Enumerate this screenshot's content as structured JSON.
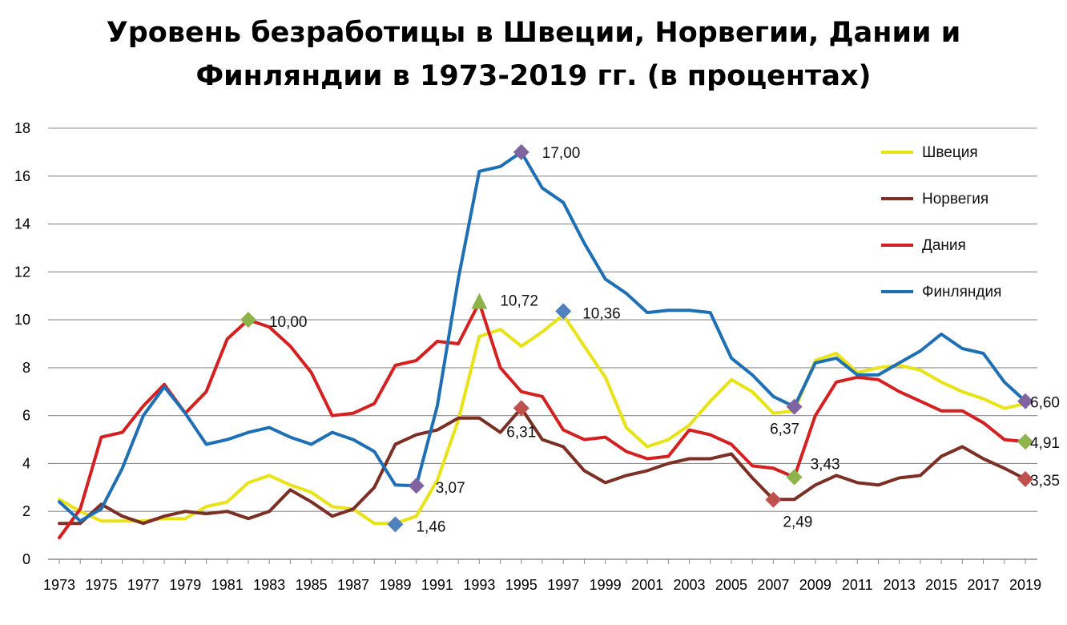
{
  "chart_data": {
    "type": "line",
    "title_line1": "Уровень безработицы в Швеции, Норвегии, Дании и",
    "title_line2": "Финляндии в 1973-2019 гг. (в процентах)",
    "xlabel": "",
    "ylabel": "",
    "ylim": [
      0,
      18
    ],
    "yticks": [
      0,
      2,
      4,
      6,
      8,
      10,
      12,
      14,
      16,
      18
    ],
    "x": [
      1973,
      1974,
      1975,
      1976,
      1977,
      1978,
      1979,
      1980,
      1981,
      1982,
      1983,
      1984,
      1985,
      1986,
      1987,
      1988,
      1989,
      1990,
      1991,
      1992,
      1993,
      1994,
      1995,
      1996,
      1997,
      1998,
      1999,
      2000,
      2001,
      2002,
      2003,
      2004,
      2005,
      2006,
      2007,
      2008,
      2009,
      2010,
      2011,
      2012,
      2013,
      2014,
      2015,
      2016,
      2017,
      2018,
      2019
    ],
    "xtick_labels": [
      "1973",
      "1975",
      "1977",
      "1979",
      "1981",
      "1983",
      "1985",
      "1987",
      "1989",
      "1991",
      "1993",
      "1995",
      "1997",
      "1999",
      "2001",
      "2003",
      "2005",
      "2007",
      "2009",
      "2011",
      "2013",
      "2015",
      "2017",
      "2019"
    ],
    "grid": true,
    "legend_position": "top-right",
    "series": [
      {
        "name": "Швеция",
        "color": "#e8e317",
        "values": [
          2.5,
          2.0,
          1.6,
          1.6,
          1.6,
          1.7,
          1.7,
          2.2,
          2.4,
          3.2,
          3.5,
          3.1,
          2.8,
          2.2,
          2.1,
          1.5,
          1.5,
          1.8,
          3.3,
          5.8,
          9.3,
          9.6,
          8.9,
          9.5,
          10.2,
          8.9,
          7.6,
          5.5,
          4.7,
          5.0,
          5.6,
          6.6,
          7.5,
          7.0,
          6.1,
          6.2,
          8.3,
          8.6,
          7.8,
          8.0,
          8.1,
          7.9,
          7.4,
          7.0,
          6.7,
          6.3,
          6.5
        ]
      },
      {
        "name": "Норвегия",
        "color": "#7b2f25",
        "values": [
          1.5,
          1.5,
          2.3,
          1.8,
          1.5,
          1.8,
          2.0,
          1.9,
          2.0,
          1.7,
          2.0,
          2.9,
          2.4,
          1.8,
          2.1,
          3.0,
          4.8,
          5.2,
          5.4,
          5.9,
          5.9,
          5.3,
          6.31,
          5.0,
          4.7,
          3.7,
          3.2,
          3.5,
          3.7,
          4.0,
          4.2,
          4.2,
          4.4,
          3.4,
          2.5,
          2.5,
          3.1,
          3.5,
          3.2,
          3.1,
          3.4,
          3.5,
          4.3,
          4.7,
          4.2,
          3.8,
          3.35
        ]
      },
      {
        "name": "Дания",
        "color": "#d42020",
        "values": [
          0.9,
          2.1,
          5.1,
          5.3,
          6.4,
          7.3,
          6.1,
          7.0,
          9.2,
          10.0,
          9.7,
          8.9,
          7.8,
          6.0,
          6.1,
          6.5,
          8.1,
          8.3,
          9.1,
          9.0,
          10.72,
          8.0,
          7.0,
          6.8,
          5.4,
          5.0,
          5.1,
          4.5,
          4.2,
          4.3,
          5.4,
          5.2,
          4.8,
          3.9,
          3.8,
          3.43,
          6.0,
          7.4,
          7.6,
          7.5,
          7.0,
          6.6,
          6.2,
          6.2,
          5.7,
          5.0,
          4.91
        ]
      },
      {
        "name": "Финляндия",
        "color": "#1f6fb5",
        "values": [
          2.4,
          1.6,
          2.1,
          3.8,
          6.0,
          7.2,
          6.1,
          4.8,
          5.0,
          5.3,
          5.5,
          5.1,
          4.8,
          5.3,
          5.0,
          4.5,
          3.1,
          3.07,
          6.4,
          11.7,
          16.2,
          16.4,
          17.0,
          15.5,
          14.9,
          13.2,
          11.7,
          11.1,
          10.3,
          10.4,
          10.4,
          10.3,
          8.4,
          7.7,
          6.8,
          6.37,
          8.2,
          8.4,
          7.7,
          7.7,
          8.2,
          8.7,
          9.4,
          8.8,
          8.6,
          7.4,
          6.6
        ]
      }
    ],
    "markers": [
      {
        "series": "Дания",
        "x": 1982,
        "y": 10.0,
        "label": "10,00",
        "color": "#8db34a"
      },
      {
        "series": "Швеция",
        "x": 1993,
        "y": 10.72,
        "label": "10,72",
        "color": "#8db34a",
        "shape": "triangle"
      },
      {
        "series": "Финляндия",
        "x": 1989,
        "y": 1.46,
        "label": "1,46",
        "color": "#4f81bd"
      },
      {
        "series": "Финляндия",
        "x": 1990,
        "y": 3.07,
        "label": "3,07",
        "color": "#8064a2"
      },
      {
        "series": "Финляндия",
        "x": 1995,
        "y": 17.0,
        "label": "17,00",
        "color": "#8064a2"
      },
      {
        "series": "Финляндия",
        "x": 1997,
        "y": 10.36,
        "label": "10,36",
        "color": "#4f81bd"
      },
      {
        "series": "Норвегия",
        "x": 1995,
        "y": 6.31,
        "label": "6,31",
        "color": "#c0504d"
      },
      {
        "series": "Финляндия",
        "x": 2008,
        "y": 6.37,
        "label": "6,37",
        "color": "#8064a2"
      },
      {
        "series": "Дания",
        "x": 2008,
        "y": 3.43,
        "label": "3,43",
        "color": "#8db34a"
      },
      {
        "series": "Норвегия",
        "x": 2007,
        "y": 2.49,
        "label": "2,49",
        "color": "#c0504d"
      },
      {
        "series": "Финляндия",
        "x": 2019,
        "y": 6.6,
        "label": "6,60",
        "color": "#8064a2"
      },
      {
        "series": "Дания",
        "x": 2019,
        "y": 4.91,
        "label": "4,91",
        "color": "#8db34a"
      },
      {
        "series": "Норвегия",
        "x": 2019,
        "y": 3.35,
        "label": "3,35",
        "color": "#c0504d"
      }
    ]
  }
}
